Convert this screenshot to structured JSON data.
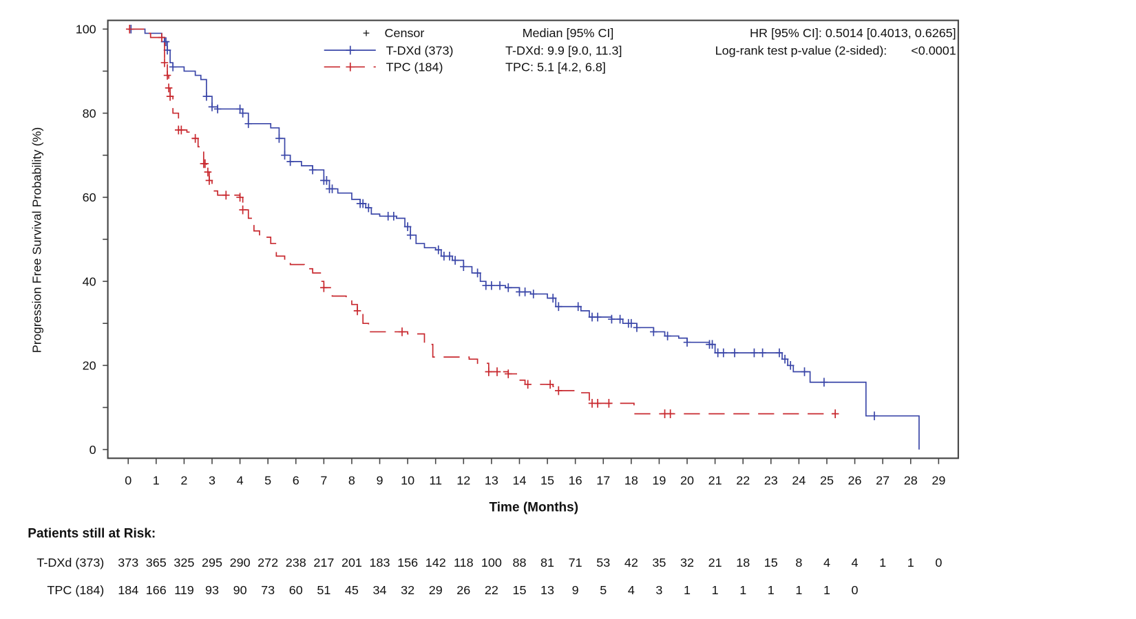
{
  "chart_data": {
    "type": "line",
    "subtype": "kaplan-meier",
    "xlabel": "Time (Months)",
    "ylabel": "Progression Free Survival Probability (%)",
    "xlim": [
      0,
      29
    ],
    "ylim": [
      0,
      100
    ],
    "xticks": [
      0,
      1,
      2,
      3,
      4,
      5,
      6,
      7,
      8,
      9,
      10,
      11,
      12,
      13,
      14,
      15,
      16,
      17,
      18,
      19,
      20,
      21,
      22,
      23,
      24,
      25,
      26,
      27,
      28,
      29
    ],
    "yticks": [
      0,
      20,
      40,
      60,
      80,
      100
    ],
    "grid": false,
    "legend": {
      "placement": "top-center",
      "censor_label": "Censor",
      "censor_symbol": "+",
      "median_header": "Median [95% CI]"
    },
    "annotations": {
      "hr": "HR [95% CI]: 0.5014 [0.4013, 0.6265]",
      "logrank_label": "Log-rank test p-value (2-sided):",
      "logrank_value": "<0.0001"
    },
    "series": [
      {
        "name": "T-DXd (373)",
        "color": "#3a46a8",
        "dash": "solid",
        "median_text": "T-DXd: 9.9 [9.0, 11.3]",
        "steps": [
          [
            0,
            100
          ],
          [
            0.5,
            100
          ],
          [
            0.6,
            99
          ],
          [
            1.0,
            99
          ],
          [
            1.2,
            98
          ],
          [
            1.3,
            97
          ],
          [
            1.4,
            95
          ],
          [
            1.5,
            92
          ],
          [
            1.6,
            91
          ],
          [
            2.0,
            90
          ],
          [
            2.4,
            89
          ],
          [
            2.6,
            88
          ],
          [
            2.8,
            84
          ],
          [
            3.0,
            81.5
          ],
          [
            3.2,
            81
          ],
          [
            4.0,
            81
          ],
          [
            4.1,
            80
          ],
          [
            4.3,
            77.5
          ],
          [
            5.1,
            76.5
          ],
          [
            5.4,
            74
          ],
          [
            5.6,
            70
          ],
          [
            5.8,
            68.5
          ],
          [
            6.2,
            67.5
          ],
          [
            6.6,
            66.5
          ],
          [
            7.0,
            64
          ],
          [
            7.2,
            62
          ],
          [
            7.5,
            61
          ],
          [
            8.0,
            59.5
          ],
          [
            8.3,
            58.5
          ],
          [
            8.5,
            57.5
          ],
          [
            8.7,
            56
          ],
          [
            9.0,
            55.5
          ],
          [
            9.6,
            55
          ],
          [
            9.9,
            53
          ],
          [
            10.1,
            51
          ],
          [
            10.3,
            49
          ],
          [
            10.6,
            48
          ],
          [
            11.0,
            47.5
          ],
          [
            11.2,
            46
          ],
          [
            11.6,
            45
          ],
          [
            12.0,
            43.5
          ],
          [
            12.3,
            42
          ],
          [
            12.6,
            40
          ],
          [
            12.8,
            39
          ],
          [
            13.5,
            38.5
          ],
          [
            14.0,
            37.5
          ],
          [
            14.4,
            37
          ],
          [
            15.0,
            36
          ],
          [
            15.3,
            34
          ],
          [
            16.0,
            34
          ],
          [
            16.2,
            33
          ],
          [
            16.5,
            31.5
          ],
          [
            17.3,
            31
          ],
          [
            17.7,
            30
          ],
          [
            18.2,
            29
          ],
          [
            18.8,
            28
          ],
          [
            19.2,
            27
          ],
          [
            19.7,
            26.5
          ],
          [
            20.0,
            25.5
          ],
          [
            20.8,
            25
          ],
          [
            21.0,
            23
          ],
          [
            23.3,
            23
          ],
          [
            23.4,
            21.5
          ],
          [
            23.6,
            20
          ],
          [
            23.8,
            18.5
          ],
          [
            24.3,
            18.5
          ],
          [
            24.4,
            16
          ],
          [
            26.4,
            16
          ],
          [
            26.4,
            8
          ],
          [
            28.3,
            8
          ],
          [
            28.3,
            0
          ]
        ],
        "censors": [
          0.1,
          1.3,
          1.35,
          1.4,
          1.6,
          2.8,
          3.0,
          3.2,
          4.0,
          4.1,
          4.3,
          5.4,
          5.6,
          5.8,
          6.6,
          7.0,
          7.1,
          7.2,
          7.3,
          8.3,
          8.4,
          8.6,
          9.3,
          9.5,
          10.0,
          10.1,
          11.1,
          11.3,
          11.5,
          11.7,
          12.0,
          12.5,
          12.8,
          13.0,
          13.3,
          13.6,
          14.0,
          14.2,
          14.5,
          15.2,
          15.4,
          16.1,
          16.6,
          16.8,
          17.3,
          17.6,
          17.9,
          18.0,
          18.2,
          18.8,
          19.3,
          20.0,
          20.8,
          20.9,
          21.1,
          21.3,
          21.7,
          22.4,
          22.7,
          23.3,
          23.5,
          23.7,
          24.2,
          24.9,
          26.7
        ]
      },
      {
        "name": "TPC (184)",
        "color": "#c8282e",
        "dash": "dashed",
        "median_text": "TPC: 5.1 [4.2, 6.8]",
        "steps": [
          [
            0,
            100
          ],
          [
            0.6,
            99
          ],
          [
            0.8,
            98
          ],
          [
            1.1,
            98
          ],
          [
            1.25,
            97
          ],
          [
            1.3,
            92
          ],
          [
            1.4,
            89
          ],
          [
            1.45,
            86
          ],
          [
            1.5,
            84
          ],
          [
            1.6,
            80
          ],
          [
            1.8,
            76
          ],
          [
            2.1,
            75.5
          ],
          [
            2.3,
            74
          ],
          [
            2.5,
            72
          ],
          [
            2.7,
            68
          ],
          [
            2.8,
            66
          ],
          [
            2.9,
            64
          ],
          [
            3.0,
            61.5
          ],
          [
            3.2,
            60.5
          ],
          [
            4.0,
            60
          ],
          [
            4.1,
            57
          ],
          [
            4.3,
            55
          ],
          [
            4.5,
            52
          ],
          [
            4.7,
            50.5
          ],
          [
            5.1,
            49
          ],
          [
            5.3,
            46
          ],
          [
            5.6,
            45
          ],
          [
            5.8,
            44
          ],
          [
            6.3,
            43
          ],
          [
            6.6,
            42
          ],
          [
            6.9,
            40
          ],
          [
            7.0,
            38.5
          ],
          [
            7.3,
            36.5
          ],
          [
            7.8,
            36
          ],
          [
            8.0,
            34.5
          ],
          [
            8.2,
            33
          ],
          [
            8.4,
            30
          ],
          [
            8.6,
            28
          ],
          [
            9.5,
            28
          ],
          [
            10.0,
            27.5
          ],
          [
            10.6,
            25
          ],
          [
            10.9,
            22
          ],
          [
            12.2,
            21.5
          ],
          [
            12.5,
            20.5
          ],
          [
            12.9,
            18.5
          ],
          [
            13.6,
            18
          ],
          [
            14.0,
            16.5
          ],
          [
            14.2,
            15.5
          ],
          [
            15.2,
            15
          ],
          [
            15.4,
            14
          ],
          [
            16.1,
            13.5
          ],
          [
            16.5,
            11
          ],
          [
            18.1,
            11
          ],
          [
            18.1,
            8.5
          ],
          [
            25.3,
            8.5
          ]
        ],
        "censors": [
          0.05,
          1.2,
          1.3,
          1.4,
          1.45,
          1.5,
          1.8,
          1.9,
          2.4,
          2.7,
          2.75,
          2.85,
          2.9,
          3.5,
          4.0,
          4.1,
          7.0,
          8.2,
          9.8,
          12.9,
          13.2,
          13.6,
          14.3,
          15.1,
          15.4,
          16.6,
          16.8,
          17.2,
          19.2,
          19.4,
          25.3
        ]
      }
    ],
    "risk_table": {
      "title": "Patients still at Risk:",
      "rows": [
        {
          "label": "T-DXd (373)",
          "values": [
            373,
            365,
            325,
            295,
            290,
            272,
            238,
            217,
            201,
            183,
            156,
            142,
            118,
            100,
            88,
            81,
            71,
            53,
            42,
            35,
            32,
            21,
            18,
            15,
            8,
            4,
            4,
            1,
            1,
            0
          ]
        },
        {
          "label": "TPC (184)",
          "values": [
            184,
            166,
            119,
            93,
            90,
            73,
            60,
            51,
            45,
            34,
            32,
            29,
            26,
            22,
            15,
            13,
            9,
            5,
            4,
            3,
            1,
            1,
            1,
            1,
            1,
            1,
            0
          ]
        }
      ]
    }
  }
}
